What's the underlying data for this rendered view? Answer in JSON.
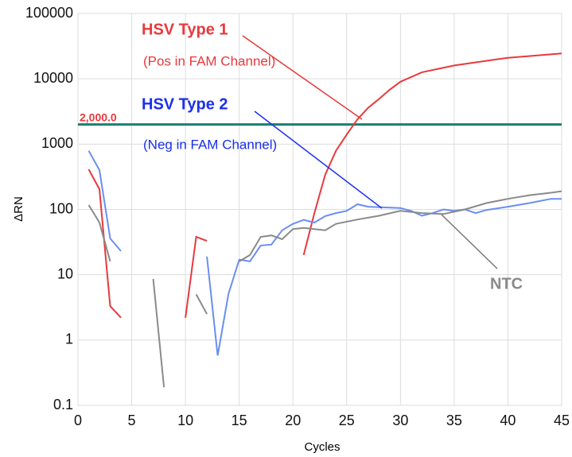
{
  "chart_data": {
    "type": "line",
    "xlabel": "Cycles",
    "ylabel": "ΔRN",
    "xlim": [
      0,
      45
    ],
    "xticks": [
      0,
      5,
      10,
      15,
      20,
      25,
      30,
      35,
      40,
      45
    ],
    "ylim": [
      0.1,
      100000
    ],
    "yticks": [
      0.1,
      1,
      10,
      100,
      1000,
      10000,
      100000
    ],
    "log_y": true,
    "grid": true,
    "threshold": 2000,
    "threshold_label": "2,000.0",
    "threshold_color": "#1a7f74",
    "series": [
      {
        "name": "HSV Type 1",
        "note": "(Pos in FAM Channel)",
        "color": "#e8393c",
        "x": [
          1,
          2,
          3,
          4,
          5,
          10,
          11,
          12,
          13,
          21,
          22,
          23,
          24,
          25,
          26,
          27,
          28,
          29,
          30,
          32,
          35,
          40,
          45
        ],
        "values": [
          412,
          204,
          3.3,
          2.2,
          null,
          2.2,
          38,
          33,
          null,
          20,
          88,
          340,
          790,
          1400,
          2400,
          3600,
          4900,
          6800,
          9000,
          12600,
          16000,
          21000,
          24500
        ]
      },
      {
        "name": "HSV Type 2",
        "note": "(Neg in FAM Channel)",
        "color": "#6a8ef0",
        "x": [
          1,
          2,
          3,
          4,
          5,
          12,
          13,
          14,
          15,
          16,
          17,
          18,
          19,
          20,
          21,
          22,
          23,
          24,
          25,
          26,
          27,
          30,
          31,
          32,
          33,
          34,
          35,
          36,
          37,
          38,
          40,
          42,
          44,
          45
        ],
        "values": [
          790,
          400,
          36,
          23,
          null,
          19,
          0.58,
          5.1,
          17,
          16,
          28,
          29,
          48,
          60,
          69,
          63,
          79,
          88,
          95,
          120,
          110,
          105,
          95,
          80,
          88,
          100,
          95,
          100,
          88,
          98,
          110,
          125,
          145,
          145
        ]
      },
      {
        "name": "NTC",
        "color": "#8a8a8a",
        "x": [
          1,
          2,
          3,
          4,
          7,
          8,
          9,
          11,
          12,
          13,
          15,
          16,
          17,
          18,
          19,
          20,
          21,
          23,
          24,
          26,
          28,
          30,
          32,
          34,
          36,
          38,
          40,
          42,
          44,
          45
        ],
        "values": [
          117,
          63,
          16,
          null,
          8.6,
          0.19,
          null,
          5,
          2.5,
          null,
          16,
          20,
          38,
          40,
          35,
          50,
          52,
          48,
          60,
          70,
          80,
          95,
          88,
          85,
          100,
          125,
          145,
          165,
          180,
          190
        ]
      }
    ]
  }
}
